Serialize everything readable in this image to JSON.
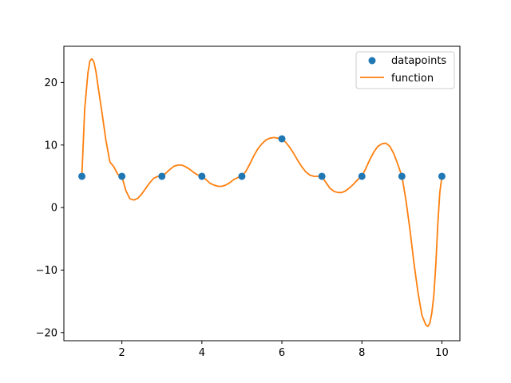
{
  "chart_data": {
    "type": "line",
    "title": "",
    "xlabel": "",
    "ylabel": "",
    "xlim": [
      0.55,
      10.45
    ],
    "ylim": [
      -21.3,
      25.8
    ],
    "xticks": [
      2,
      4,
      6,
      8,
      10
    ],
    "yticks": [
      -20,
      -10,
      0,
      10,
      20
    ],
    "grid": false,
    "legend": {
      "position": "top-right",
      "entries": [
        "datapoints",
        "function"
      ]
    },
    "series": [
      {
        "name": "datapoints",
        "kind": "scatter",
        "color": "#1f77b4",
        "x": [
          1,
          2,
          3,
          4,
          5,
          6,
          7,
          8,
          9,
          10
        ],
        "y": [
          5,
          5,
          5,
          5,
          5,
          11,
          5,
          5,
          5,
          5
        ]
      },
      {
        "name": "function",
        "kind": "line",
        "color": "#ff7f0e",
        "x": [
          1.0,
          1.07,
          1.15,
          1.2,
          1.25,
          1.3,
          1.35,
          1.4,
          1.5,
          1.6,
          1.7,
          1.8,
          1.9,
          2.0,
          2.1,
          2.2,
          2.3,
          2.4,
          2.5,
          2.6,
          2.7,
          2.8,
          2.9,
          3.0,
          3.1,
          3.2,
          3.3,
          3.4,
          3.5,
          3.6,
          3.7,
          3.8,
          3.9,
          4.0,
          4.1,
          4.2,
          4.3,
          4.4,
          4.5,
          4.6,
          4.7,
          4.8,
          4.9,
          5.0,
          5.1,
          5.2,
          5.3,
          5.4,
          5.5,
          5.6,
          5.7,
          5.8,
          5.9,
          6.0,
          6.1,
          6.2,
          6.3,
          6.4,
          6.5,
          6.6,
          6.7,
          6.8,
          6.9,
          7.0,
          7.1,
          7.2,
          7.3,
          7.4,
          7.5,
          7.6,
          7.7,
          7.8,
          7.9,
          8.0,
          8.1,
          8.2,
          8.3,
          8.4,
          8.5,
          8.6,
          8.7,
          8.8,
          8.9,
          9.0,
          9.1,
          9.2,
          9.3,
          9.4,
          9.5,
          9.6,
          9.65,
          9.7,
          9.75,
          9.8,
          9.85,
          9.9,
          9.95,
          10.0
        ],
        "y": [
          5.0,
          15.8,
          21.5,
          23.5,
          23.8,
          23.3,
          21.8,
          19.6,
          15.3,
          10.8,
          7.3,
          6.5,
          5.3,
          5.0,
          2.7,
          1.4,
          1.2,
          1.5,
          2.2,
          3.1,
          4.0,
          4.7,
          5.0,
          5.0,
          5.5,
          6.1,
          6.6,
          6.8,
          6.8,
          6.5,
          6.1,
          5.6,
          5.2,
          5.0,
          4.5,
          3.9,
          3.6,
          3.4,
          3.4,
          3.6,
          4.0,
          4.5,
          4.8,
          5.0,
          5.8,
          7.0,
          8.3,
          9.4,
          10.2,
          10.8,
          11.1,
          11.2,
          11.1,
          11.0,
          10.4,
          9.6,
          8.6,
          7.5,
          6.5,
          5.7,
          5.2,
          5.0,
          5.0,
          5.0,
          4.0,
          3.1,
          2.6,
          2.4,
          2.4,
          2.7,
          3.2,
          3.8,
          4.5,
          5.0,
          6.3,
          7.7,
          8.9,
          9.8,
          10.2,
          10.3,
          9.8,
          8.6,
          6.9,
          5.0,
          1.2,
          -3.5,
          -8.8,
          -13.5,
          -17.2,
          -18.8,
          -19.0,
          -18.5,
          -16.8,
          -14.0,
          -9.0,
          -2.5,
          2.5,
          5.0
        ]
      }
    ]
  }
}
